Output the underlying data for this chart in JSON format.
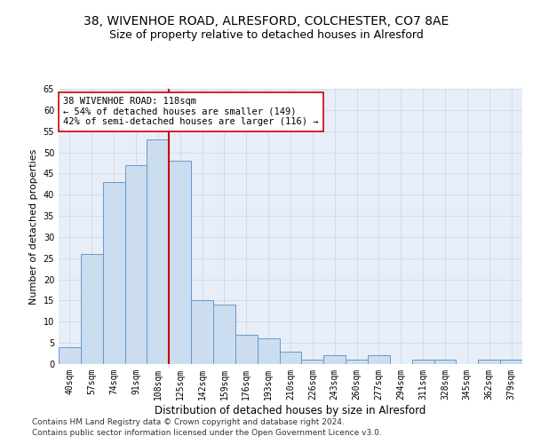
{
  "title1": "38, WIVENHOE ROAD, ALRESFORD, COLCHESTER, CO7 8AE",
  "title2": "Size of property relative to detached houses in Alresford",
  "xlabel": "Distribution of detached houses by size in Alresford",
  "ylabel": "Number of detached properties",
  "categories": [
    "40sqm",
    "57sqm",
    "74sqm",
    "91sqm",
    "108sqm",
    "125sqm",
    "142sqm",
    "159sqm",
    "176sqm",
    "193sqm",
    "210sqm",
    "226sqm",
    "243sqm",
    "260sqm",
    "277sqm",
    "294sqm",
    "311sqm",
    "328sqm",
    "345sqm",
    "362sqm",
    "379sqm"
  ],
  "values": [
    4,
    26,
    43,
    47,
    53,
    48,
    15,
    14,
    7,
    6,
    3,
    1,
    2,
    1,
    2,
    0,
    1,
    1,
    0,
    1,
    1
  ],
  "bar_color": "#ccddf0",
  "bar_edge_color": "#6699cc",
  "bar_linewidth": 0.7,
  "red_line_index": 4.5,
  "red_line_color": "#cc0000",
  "annotation_line1": "38 WIVENHOE ROAD: 118sqm",
  "annotation_line2": "← 54% of detached houses are smaller (149)",
  "annotation_line3": "42% of semi-detached houses are larger (116) →",
  "ylim": [
    0,
    65
  ],
  "yticks": [
    0,
    5,
    10,
    15,
    20,
    25,
    30,
    35,
    40,
    45,
    50,
    55,
    60,
    65
  ],
  "grid_color": "#c8d4e8",
  "bg_color": "#e8eef8",
  "footer1": "Contains HM Land Registry data © Crown copyright and database right 2024.",
  "footer2": "Contains public sector information licensed under the Open Government Licence v3.0.",
  "title1_fontsize": 10,
  "title2_fontsize": 9,
  "xlabel_fontsize": 8.5,
  "ylabel_fontsize": 8,
  "tick_fontsize": 7,
  "footer_fontsize": 6.5,
  "annot_fontsize": 7.5
}
